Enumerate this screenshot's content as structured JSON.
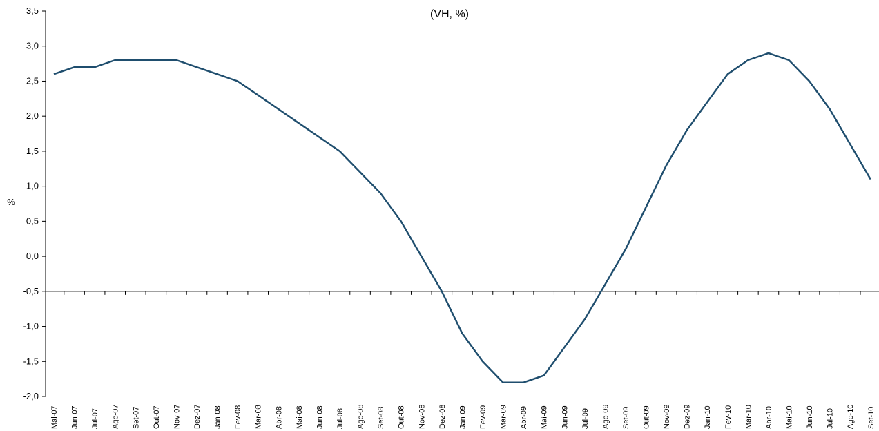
{
  "chart_data": {
    "type": "line",
    "title": "(VH, %)",
    "ylabel": "%",
    "xlabel": "",
    "ylim": [
      -2.0,
      3.5
    ],
    "y_ticks": [
      "3,5",
      "3,0",
      "2,5",
      "2,0",
      "1,5",
      "1,0",
      "0,5",
      "0,0",
      "-0,5",
      "-1,0",
      "-1,5",
      "-2,0"
    ],
    "x_axis_crosses_at": -0.5,
    "grid": false,
    "legend": "none",
    "line_color": "#1f4e6e",
    "categories": [
      "Mai-07",
      "Jun-07",
      "Jul-07",
      "Ago-07",
      "Set-07",
      "Out-07",
      "Nov-07",
      "Dez-07",
      "Jan-08",
      "Fev-08",
      "Mar-08",
      "Abr-08",
      "Mai-08",
      "Jun-08",
      "Jul-08",
      "Ago-08",
      "Set-08",
      "Out-08",
      "Nov-08",
      "Dez-08",
      "Jan-09",
      "Fev-09",
      "Mar-09",
      "Abr-09",
      "Mai-09",
      "Jun-09",
      "Jul-09",
      "Ago-09",
      "Set-09",
      "Out-09",
      "Nov-09",
      "Dez-09",
      "Jan-10",
      "Fev-10",
      "Mar-10",
      "Abr-10",
      "Mai-10",
      "Jun-10",
      "Jul-10",
      "Ago-10",
      "Set-10"
    ],
    "series": [
      {
        "values": [
          2.6,
          2.7,
          2.7,
          2.8,
          2.8,
          2.8,
          2.8,
          2.7,
          2.6,
          2.5,
          2.3,
          2.1,
          1.9,
          1.7,
          1.5,
          1.2,
          0.9,
          0.5,
          0.0,
          -0.5,
          -1.1,
          -1.5,
          -1.8,
          -1.8,
          -1.7,
          -1.3,
          -0.9,
          -0.4,
          0.1,
          0.7,
          1.3,
          1.8,
          2.2,
          2.6,
          2.8,
          2.9,
          2.8,
          2.5,
          2.1,
          1.6,
          1.1
        ]
      }
    ]
  }
}
